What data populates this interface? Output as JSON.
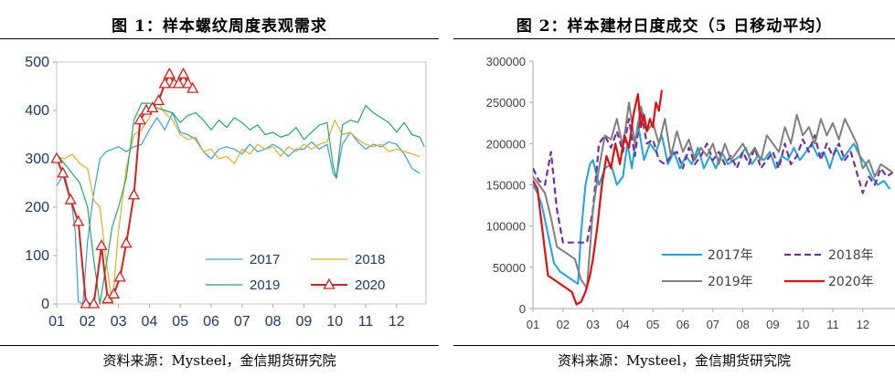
{
  "source_text": "资料来源：Mysteel，金信期货研究院",
  "chart_data": [
    {
      "type": "line",
      "title": "图 1：样本螺纹周度表观需求",
      "source": "资料来源：Mysteel，金信期货研究院",
      "x_tick_labels": [
        "01",
        "02",
        "03",
        "04",
        "05",
        "06",
        "07",
        "08",
        "09",
        "10",
        "11",
        "12"
      ],
      "ylim": [
        0,
        500
      ],
      "y_ticks": [
        0,
        100,
        200,
        300,
        400,
        500
      ],
      "legend_position": "bottom-center",
      "series": [
        {
          "name": "2017",
          "color": "#3a9fd6",
          "marker": "none",
          "x": [
            1.0,
            1.25,
            1.5,
            1.6,
            1.7,
            1.85,
            2.0,
            2.2,
            2.4,
            2.6,
            2.8,
            3.0,
            3.25,
            3.5,
            3.75,
            4.0,
            4.25,
            4.5,
            4.75,
            5.0,
            5.25,
            5.5,
            5.75,
            6.0,
            6.25,
            6.5,
            6.75,
            7.0,
            7.25,
            7.5,
            7.75,
            8.0,
            8.25,
            8.5,
            8.75,
            9.0,
            9.25,
            9.5,
            9.75,
            9.95,
            10.05,
            10.25,
            10.5,
            10.75,
            11.0,
            11.25,
            11.5,
            11.75,
            12.0,
            12.25,
            12.5,
            12.75
          ],
          "y": [
            245,
            270,
            200,
            150,
            5,
            0,
            130,
            230,
            300,
            315,
            320,
            325,
            315,
            325,
            330,
            360,
            385,
            360,
            395,
            355,
            350,
            340,
            315,
            300,
            320,
            325,
            320,
            310,
            330,
            315,
            320,
            330,
            320,
            305,
            320,
            320,
            335,
            320,
            330,
            270,
            260,
            330,
            355,
            335,
            320,
            330,
            325,
            335,
            330,
            310,
            280,
            270
          ]
        },
        {
          "name": "2018",
          "color": "#e0b020",
          "marker": "none",
          "x": [
            1.0,
            1.25,
            1.5,
            1.75,
            2.0,
            2.2,
            2.4,
            2.6,
            2.8,
            3.0,
            3.25,
            3.5,
            3.75,
            4.0,
            4.25,
            4.5,
            4.75,
            5.0,
            5.25,
            5.5,
            5.75,
            6.0,
            6.25,
            6.5,
            6.75,
            7.0,
            7.25,
            7.5,
            7.75,
            8.0,
            8.25,
            8.5,
            8.75,
            9.0,
            9.25,
            9.5,
            9.75,
            10.0,
            10.25,
            10.5,
            10.75,
            11.0,
            11.25,
            11.5,
            11.75,
            12.0,
            12.25,
            12.5,
            12.75
          ],
          "y": [
            305,
            300,
            310,
            290,
            280,
            215,
            200,
            90,
            0,
            150,
            280,
            350,
            360,
            385,
            420,
            395,
            380,
            350,
            340,
            345,
            315,
            320,
            300,
            305,
            290,
            320,
            310,
            330,
            320,
            325,
            305,
            325,
            315,
            330,
            320,
            330,
            335,
            380,
            350,
            355,
            340,
            330,
            325,
            330,
            315,
            320,
            315,
            310,
            305
          ]
        },
        {
          "name": "2019",
          "color": "#22a868",
          "marker": "none",
          "x": [
            1.0,
            1.25,
            1.5,
            1.75,
            2.0,
            2.2,
            2.4,
            2.6,
            2.8,
            3.0,
            3.25,
            3.5,
            3.75,
            4.0,
            4.25,
            4.5,
            4.75,
            5.0,
            5.25,
            5.5,
            5.75,
            6.0,
            6.25,
            6.5,
            6.75,
            7.0,
            7.25,
            7.5,
            7.75,
            8.0,
            8.25,
            8.5,
            8.75,
            9.0,
            9.25,
            9.5,
            9.75,
            9.95,
            10.05,
            10.25,
            10.5,
            10.75,
            11.0,
            11.25,
            11.5,
            11.75,
            12.0,
            12.25,
            12.5,
            12.75,
            12.9
          ],
          "y": [
            310,
            290,
            270,
            250,
            200,
            90,
            0,
            80,
            160,
            200,
            260,
            380,
            415,
            415,
            405,
            400,
            395,
            375,
            390,
            395,
            380,
            360,
            380,
            365,
            385,
            375,
            360,
            370,
            350,
            355,
            345,
            350,
            365,
            340,
            355,
            370,
            375,
            285,
            260,
            370,
            380,
            375,
            410,
            395,
            385,
            375,
            355,
            375,
            350,
            345,
            325
          ]
        },
        {
          "name": "2020",
          "color": "#d42020",
          "marker": "triangle",
          "x": [
            1.0,
            1.2,
            1.45,
            1.7,
            1.95,
            2.2,
            2.45,
            2.65,
            2.85,
            3.05,
            3.25,
            3.5,
            3.7,
            3.9,
            4.1,
            4.3,
            4.5,
            4.65,
            4.8,
            4.95,
            5.1,
            5.25,
            5.4
          ],
          "y": [
            300,
            270,
            215,
            170,
            0,
            0,
            120,
            10,
            20,
            55,
            125,
            225,
            380,
            400,
            405,
            420,
            455,
            475,
            455,
            455,
            475,
            455,
            445
          ]
        }
      ]
    },
    {
      "type": "line",
      "title": "图 2：样本建材日度成交（5 日移动平均）",
      "source": "资料来源：Mysteel，金信期货研究院",
      "x_tick_labels": [
        "01",
        "02",
        "03",
        "04",
        "05",
        "06",
        "07",
        "08",
        "09",
        "10",
        "11",
        "12"
      ],
      "ylim": [
        0,
        300000
      ],
      "y_ticks": [
        0,
        50000,
        100000,
        150000,
        200000,
        250000,
        300000
      ],
      "legend_position": "bottom-center",
      "series": [
        {
          "name": "2017年",
          "color": "#1ea5e0",
          "dash": "solid",
          "x": [
            1.0,
            1.15,
            1.3,
            1.5,
            1.7,
            1.9,
            2.1,
            2.3,
            2.5,
            2.6,
            2.75,
            2.9,
            3.0,
            3.2,
            3.4,
            3.6,
            3.8,
            4.0,
            4.15,
            4.3,
            4.5,
            4.7,
            4.9,
            5.1,
            5.3,
            5.5,
            5.7,
            5.9,
            6.1,
            6.3,
            6.5,
            6.7,
            6.9,
            7.1,
            7.3,
            7.5,
            7.7,
            7.9,
            8.1,
            8.3,
            8.5,
            8.7,
            8.9,
            9.1,
            9.3,
            9.5,
            9.7,
            9.9,
            10.1,
            10.3,
            10.5,
            10.7,
            10.9,
            11.1,
            11.3,
            11.5,
            11.7,
            11.9,
            12.1,
            12.3,
            12.5,
            12.7,
            12.9
          ],
          "y": [
            150000,
            140000,
            125000,
            90000,
            55000,
            45000,
            40000,
            35000,
            30000,
            90000,
            150000,
            175000,
            180000,
            150000,
            170000,
            175000,
            150000,
            160000,
            200000,
            170000,
            225000,
            180000,
            200000,
            190000,
            210000,
            175000,
            190000,
            170000,
            185000,
            175000,
            195000,
            170000,
            185000,
            170000,
            190000,
            175000,
            180000,
            185000,
            195000,
            175000,
            185000,
            180000,
            190000,
            170000,
            185000,
            180000,
            195000,
            180000,
            190000,
            200000,
            185000,
            190000,
            170000,
            195000,
            180000,
            190000,
            200000,
            185000,
            175000,
            160000,
            150000,
            155000,
            145000
          ]
        },
        {
          "name": "2018年",
          "color": "#7030a0",
          "dash": "dashed",
          "x": [
            1.0,
            1.2,
            1.4,
            1.6,
            1.8,
            2.0,
            2.2,
            2.4,
            2.6,
            2.8,
            3.0,
            3.2,
            3.4,
            3.6,
            3.8,
            4.0,
            4.2,
            4.4,
            4.6,
            4.8,
            5.0,
            5.2,
            5.4,
            5.6,
            5.8,
            6.0,
            6.2,
            6.4,
            6.6,
            6.8,
            7.0,
            7.2,
            7.4,
            7.6,
            7.8,
            8.0,
            8.2,
            8.4,
            8.6,
            8.8,
            9.0,
            9.2,
            9.4,
            9.6,
            9.8,
            10.0,
            10.2,
            10.4,
            10.6,
            10.8,
            11.0,
            11.2,
            11.4,
            11.6,
            11.8,
            12.0,
            12.2,
            12.4,
            12.6,
            12.8,
            13.0
          ],
          "y": [
            170000,
            155000,
            150000,
            190000,
            120000,
            80000,
            80000,
            80000,
            80000,
            80000,
            120000,
            200000,
            210000,
            195000,
            215000,
            190000,
            230000,
            185000,
            240000,
            200000,
            205000,
            180000,
            175000,
            185000,
            190000,
            170000,
            195000,
            175000,
            185000,
            200000,
            180000,
            190000,
            175000,
            185000,
            170000,
            190000,
            175000,
            195000,
            170000,
            180000,
            190000,
            170000,
            200000,
            175000,
            185000,
            205000,
            190000,
            210000,
            180000,
            200000,
            185000,
            200000,
            180000,
            190000,
            165000,
            140000,
            160000,
            150000,
            170000,
            160000,
            165000
          ]
        },
        {
          "name": "2019年",
          "color": "#7f7f7f",
          "dash": "solid",
          "x": [
            1.0,
            1.2,
            1.4,
            1.6,
            1.8,
            2.0,
            2.2,
            2.4,
            2.6,
            2.8,
            3.0,
            3.2,
            3.4,
            3.6,
            3.8,
            4.0,
            4.2,
            4.4,
            4.6,
            4.8,
            5.0,
            5.2,
            5.4,
            5.6,
            5.8,
            6.0,
            6.2,
            6.4,
            6.6,
            6.8,
            7.0,
            7.2,
            7.4,
            7.6,
            7.8,
            8.0,
            8.2,
            8.4,
            8.6,
            8.8,
            9.0,
            9.2,
            9.4,
            9.6,
            9.8,
            10.0,
            10.2,
            10.4,
            10.6,
            10.8,
            11.0,
            11.2,
            11.4,
            11.6,
            11.8,
            12.0,
            12.2,
            12.4,
            12.6,
            12.8,
            13.0
          ],
          "y": [
            160000,
            150000,
            140000,
            110000,
            75000,
            70000,
            65000,
            60000,
            35000,
            25000,
            120000,
            170000,
            210000,
            205000,
            230000,
            195000,
            250000,
            200000,
            245000,
            215000,
            225000,
            200000,
            230000,
            185000,
            215000,
            190000,
            205000,
            180000,
            195000,
            185000,
            200000,
            175000,
            200000,
            180000,
            190000,
            200000,
            185000,
            195000,
            180000,
            210000,
            200000,
            190000,
            220000,
            200000,
            235000,
            210000,
            220000,
            200000,
            230000,
            210000,
            225000,
            205000,
            230000,
            215000,
            200000,
            170000,
            180000,
            160000,
            175000,
            170000,
            165000
          ]
        },
        {
          "name": "2020年",
          "color": "#e01010",
          "dash": "solid",
          "x": [
            1.0,
            1.15,
            1.3,
            1.5,
            1.7,
            1.9,
            2.1,
            2.3,
            2.45,
            2.6,
            2.75,
            2.9,
            3.0,
            3.15,
            3.3,
            3.45,
            3.6,
            3.75,
            3.9,
            4.05,
            4.2,
            4.35,
            4.5,
            4.6,
            4.7,
            4.8,
            4.9,
            5.0,
            5.1,
            5.2,
            5.3
          ],
          "y": [
            155000,
            145000,
            100000,
            40000,
            35000,
            30000,
            25000,
            20000,
            5000,
            8000,
            20000,
            40000,
            60000,
            100000,
            150000,
            185000,
            170000,
            200000,
            175000,
            210000,
            195000,
            235000,
            260000,
            220000,
            235000,
            215000,
            230000,
            220000,
            250000,
            240000,
            265000
          ]
        }
      ]
    }
  ]
}
